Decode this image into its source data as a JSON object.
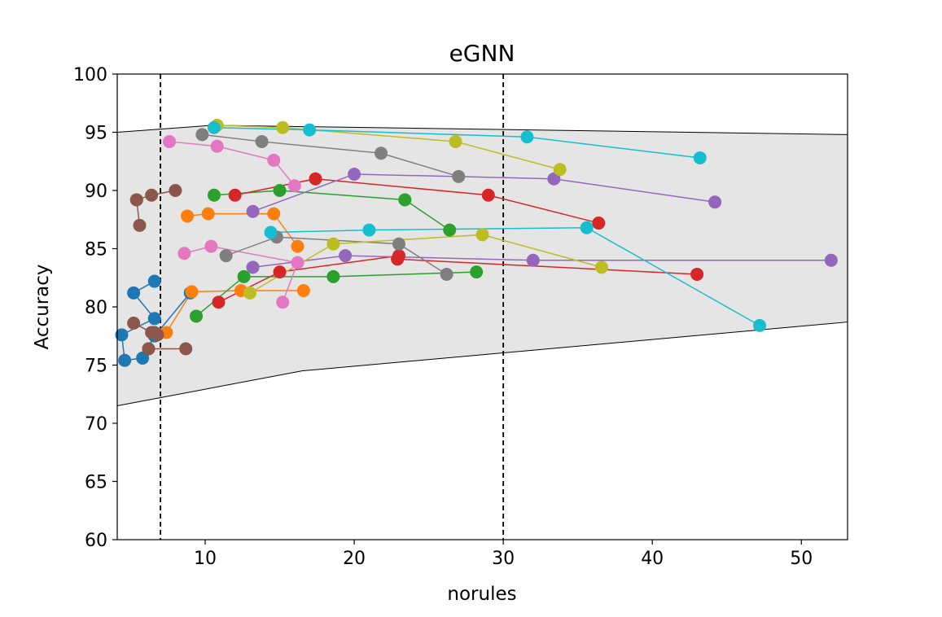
{
  "chart_data": {
    "type": "line",
    "title": "eGNN",
    "xlabel": "norules",
    "ylabel": "Accuracy",
    "xlim": [
      4.1,
      53.1
    ],
    "ylim": [
      60,
      100
    ],
    "xticks": [
      10,
      20,
      30,
      40,
      50
    ],
    "yticks": [
      60,
      65,
      70,
      75,
      80,
      85,
      90,
      95,
      100
    ],
    "grid": false,
    "legend": "none",
    "vlines": [
      7,
      30
    ],
    "band": {
      "upper": [
        [
          4.1,
          95.0
        ],
        [
          10.5,
          95.6
        ],
        [
          53.1,
          94.8
        ]
      ],
      "lower": [
        [
          4.1,
          71.5
        ],
        [
          16.5,
          74.5
        ],
        [
          53.1,
          78.7
        ]
      ],
      "fill": "#e5e5e5"
    },
    "series": [
      {
        "color": "#1f77b4",
        "points": [
          [
            6.6,
            82.2
          ],
          [
            5.2,
            81.2
          ],
          [
            6.6,
            79.0
          ],
          [
            4.4,
            77.6
          ],
          [
            4.6,
            75.4
          ],
          [
            5.8,
            75.6
          ],
          [
            6.6,
            77.5
          ],
          [
            9.0,
            81.2
          ]
        ]
      },
      {
        "color": "#ff7f0e",
        "points": [
          [
            8.8,
            87.8
          ],
          [
            10.2,
            88.0
          ],
          [
            14.6,
            88.0
          ],
          [
            16.2,
            85.2
          ]
        ]
      },
      {
        "color": "#ff7f0e",
        "points": [
          [
            7.4,
            77.8
          ],
          [
            9.1,
            81.3
          ],
          [
            12.4,
            81.4
          ],
          [
            16.6,
            81.4
          ]
        ]
      },
      {
        "color": "#2ca02c",
        "points": [
          [
            10.6,
            89.6
          ],
          [
            15.0,
            90.0
          ],
          [
            23.4,
            89.2
          ],
          [
            26.4,
            86.6
          ]
        ]
      },
      {
        "color": "#2ca02c",
        "points": [
          [
            9.4,
            79.2
          ],
          [
            12.6,
            82.6
          ],
          [
            18.6,
            82.6
          ],
          [
            28.2,
            83.0
          ]
        ]
      },
      {
        "color": "#d62728",
        "points": [
          [
            12.0,
            89.6
          ],
          [
            17.4,
            91.0
          ],
          [
            29.0,
            89.6
          ],
          [
            36.4,
            87.2
          ]
        ]
      },
      {
        "color": "#d62728",
        "points": [
          [
            10.9,
            80.4
          ],
          [
            15.0,
            83.0
          ],
          [
            23.0,
            84.4
          ]
        ]
      },
      {
        "color": "#d62728",
        "points": [
          [
            22.9,
            84.1
          ],
          [
            43.0,
            82.8
          ]
        ]
      },
      {
        "color": "#9467bd",
        "points": [
          [
            13.2,
            88.2
          ],
          [
            20.0,
            91.4
          ],
          [
            33.4,
            91.0
          ],
          [
            44.2,
            89.0
          ]
        ]
      },
      {
        "color": "#9467bd",
        "points": [
          [
            13.2,
            83.4
          ],
          [
            19.4,
            84.4
          ],
          [
            32.0,
            84.0
          ],
          [
            52.0,
            84.0
          ]
        ]
      },
      {
        "color": "#8c564b",
        "points": [
          [
            5.4,
            89.2
          ],
          [
            6.4,
            89.6
          ],
          [
            8.0,
            90.0
          ]
        ]
      },
      {
        "color": "#8c564b",
        "points": [
          [
            5.6,
            87.0
          ],
          [
            5.4,
            89.2
          ]
        ]
      },
      {
        "color": "#8c564b",
        "points": [
          [
            5.2,
            78.6
          ],
          [
            6.4,
            77.8
          ],
          [
            6.8,
            77.6
          ]
        ]
      },
      {
        "color": "#8c564b",
        "points": [
          [
            6.2,
            76.4
          ],
          [
            6.6,
            77.8
          ]
        ]
      },
      {
        "color": "#8c564b",
        "points": [
          [
            6.2,
            76.4
          ],
          [
            8.7,
            76.4
          ]
        ]
      },
      {
        "color": "#e377c2",
        "points": [
          [
            7.6,
            94.2
          ],
          [
            10.8,
            93.8
          ],
          [
            14.6,
            92.6
          ],
          [
            16.0,
            90.4
          ]
        ]
      },
      {
        "color": "#e377c2",
        "points": [
          [
            8.6,
            84.6
          ],
          [
            10.4,
            85.2
          ],
          [
            16.2,
            83.8
          ],
          [
            15.2,
            80.4
          ]
        ]
      },
      {
        "color": "#7f7f7f",
        "points": [
          [
            9.8,
            94.8
          ],
          [
            13.8,
            94.2
          ],
          [
            21.8,
            93.2
          ],
          [
            27.0,
            91.2
          ]
        ]
      },
      {
        "color": "#7f7f7f",
        "points": [
          [
            11.4,
            84.4
          ],
          [
            14.8,
            86.0
          ],
          [
            23.0,
            85.4
          ],
          [
            26.2,
            82.8
          ]
        ]
      },
      {
        "color": "#bcbd22",
        "points": [
          [
            10.8,
            95.6
          ],
          [
            15.2,
            95.4
          ],
          [
            26.8,
            94.2
          ],
          [
            33.8,
            91.8
          ]
        ]
      },
      {
        "color": "#bcbd22",
        "points": [
          [
            13.0,
            81.2
          ],
          [
            18.6,
            85.4
          ],
          [
            28.6,
            86.2
          ],
          [
            36.6,
            83.4
          ]
        ]
      },
      {
        "color": "#17becf",
        "points": [
          [
            10.6,
            95.4
          ],
          [
            17.0,
            95.2
          ],
          [
            31.6,
            94.6
          ],
          [
            43.2,
            92.8
          ]
        ]
      },
      {
        "color": "#17becf",
        "points": [
          [
            14.4,
            86.4
          ],
          [
            21.0,
            86.6
          ],
          [
            35.6,
            86.8
          ],
          [
            47.2,
            78.4
          ]
        ]
      }
    ]
  }
}
